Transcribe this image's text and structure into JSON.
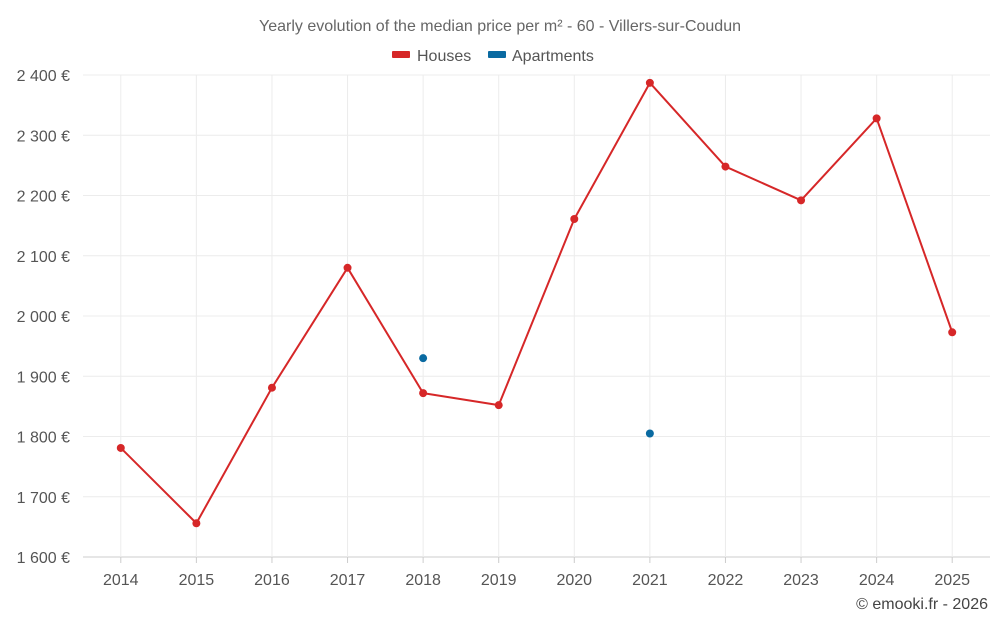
{
  "chart_data": {
    "type": "line",
    "title": "Yearly evolution of the median price per m² - 60 - Villers-sur-Coudun",
    "categories": [
      "2014",
      "2015",
      "2016",
      "2017",
      "2018",
      "2019",
      "2020",
      "2021",
      "2022",
      "2023",
      "2024",
      "2025"
    ],
    "ylim": [
      1600,
      2400
    ],
    "yticks": [
      1600,
      1700,
      1800,
      1900,
      2000,
      2100,
      2200,
      2300,
      2400
    ],
    "ytick_labels": [
      "1 600 €",
      "1 700 €",
      "1 800 €",
      "1 900 €",
      "2 000 €",
      "2 100 €",
      "2 200 €",
      "2 300 €",
      "2 400 €"
    ],
    "series": [
      {
        "name": "Houses",
        "color": "#d62728",
        "line": true,
        "values": [
          1781,
          1656,
          1881,
          2080,
          1872,
          1852,
          2161,
          2387,
          2248,
          2192,
          2328,
          1973
        ]
      },
      {
        "name": "Apartments",
        "color": "#0a6aa1",
        "line": false,
        "values": [
          null,
          null,
          null,
          null,
          1930,
          null,
          null,
          1805,
          null,
          null,
          null,
          null
        ]
      }
    ],
    "legend_position": "top-center",
    "grid": true,
    "credit": "© emooki.fr - 2026"
  }
}
